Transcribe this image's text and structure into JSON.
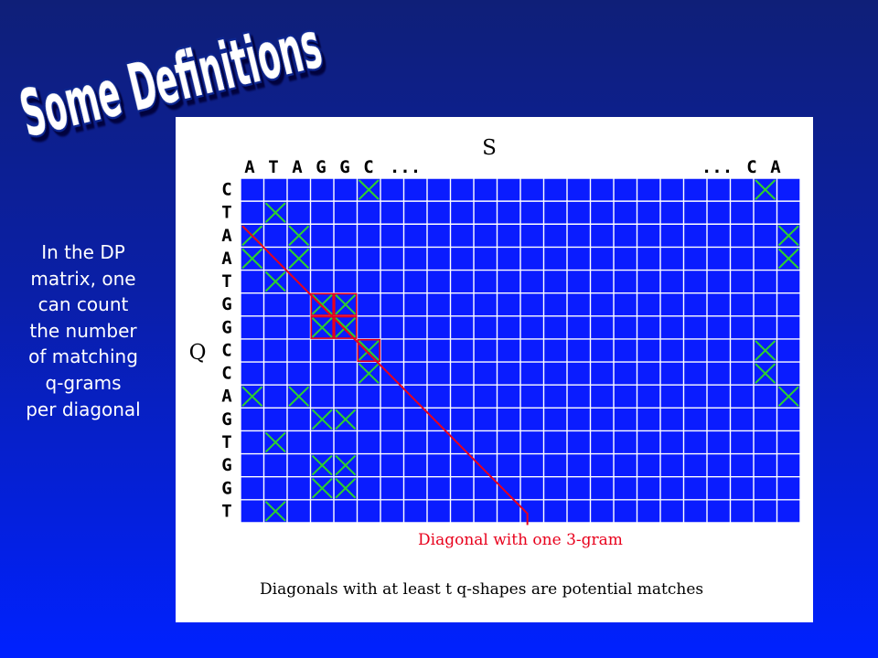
{
  "slide": {
    "title": "Some Definitions",
    "body_lines": [
      "In the DP",
      "matrix, one",
      "can count",
      "the number",
      "of matching",
      "q-grams",
      "per diagonal"
    ]
  },
  "figure": {
    "s_label": "S",
    "q_label": "Q",
    "column_letters_left": [
      "A",
      "T",
      "A",
      "G",
      "G",
      "C"
    ],
    "column_ellipsis_left": "...",
    "column_ellipsis_right": "...",
    "column_letters_right": [
      "C",
      "A"
    ],
    "row_letters": [
      "C",
      "T",
      "A",
      "A",
      "T",
      "G",
      "G",
      "C",
      "C",
      "A",
      "G",
      "T",
      "G",
      "G",
      "T"
    ],
    "grid": {
      "rows": 15,
      "cols": 24
    },
    "matches_green": [
      [
        0,
        5
      ],
      [
        0,
        22
      ],
      [
        1,
        1
      ],
      [
        2,
        0
      ],
      [
        2,
        2
      ],
      [
        2,
        23
      ],
      [
        3,
        0
      ],
      [
        3,
        2
      ],
      [
        3,
        23
      ],
      [
        4,
        1
      ],
      [
        7,
        22
      ],
      [
        8,
        5
      ],
      [
        8,
        22
      ],
      [
        9,
        0
      ],
      [
        9,
        2
      ],
      [
        9,
        23
      ],
      [
        10,
        3
      ],
      [
        10,
        4
      ],
      [
        11,
        1
      ],
      [
        12,
        3
      ],
      [
        12,
        4
      ],
      [
        13,
        3
      ],
      [
        13,
        4
      ],
      [
        14,
        1
      ]
    ],
    "matches_red": [
      [
        5,
        3
      ],
      [
        5,
        4
      ],
      [
        6,
        3
      ],
      [
        6,
        4
      ],
      [
        7,
        5
      ]
    ],
    "diagonal_caption": "Diagonal with one 3-gram",
    "bottom_caption": "Diagonals with at least t q-shapes are potential matches",
    "colors": {
      "cell": "#0a1cff",
      "grid_line": "#ffffff",
      "match_green": "#2dd12d",
      "highlight_red": "#e8001c",
      "letters": "#000000"
    }
  }
}
